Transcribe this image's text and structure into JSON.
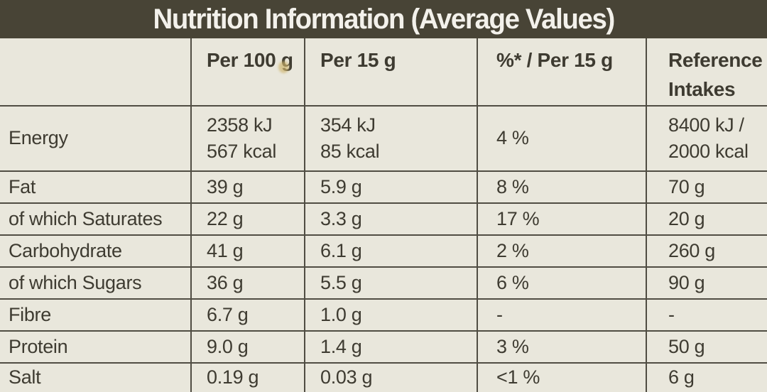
{
  "title": "Nutrition Information (Average Values)",
  "columns": [
    "",
    "Per 100 g",
    "Per 15 g",
    "%* / Per 15 g",
    "Reference Intakes"
  ],
  "rows": [
    {
      "name": "Energy",
      "per100": "2358 kJ\n567 kcal",
      "per15": "354 kJ\n85 kcal",
      "pct": "4 %",
      "ref": "8400 kJ /\n2000 kcal"
    },
    {
      "name": "Fat",
      "per100": "39 g",
      "per15": "5.9 g",
      "pct": "8 %",
      "ref": "70 g"
    },
    {
      "name": "of which Saturates",
      "per100": "22 g",
      "per15": "3.3 g",
      "pct": "17 %",
      "ref": "20 g"
    },
    {
      "name": "Carbohydrate",
      "per100": "41 g",
      "per15": "6.1 g",
      "pct": "2 %",
      "ref": "260 g"
    },
    {
      "name": "of which Sugars",
      "per100": "36 g",
      "per15": "5.5 g",
      "pct": "6 %",
      "ref": "90 g"
    },
    {
      "name": "Fibre",
      "per100": "6.7 g",
      "per15": "1.0 g",
      "pct": "-",
      "ref": "-"
    },
    {
      "name": "Protein",
      "per100": "9.0 g",
      "per15": "1.4 g",
      "pct": "3 %",
      "ref": "50 g"
    },
    {
      "name": "Salt",
      "per100": "0.19 g",
      "per15": "0.03 g",
      "pct": "<1 %",
      "ref": "6 g"
    }
  ],
  "colors": {
    "band_bg": "#484436",
    "band_text": "#f3f1eb",
    "label_bg": "#e9e7dc",
    "text": "#3e3b31",
    "line": "#504d43",
    "stain": "#cdb36a"
  }
}
